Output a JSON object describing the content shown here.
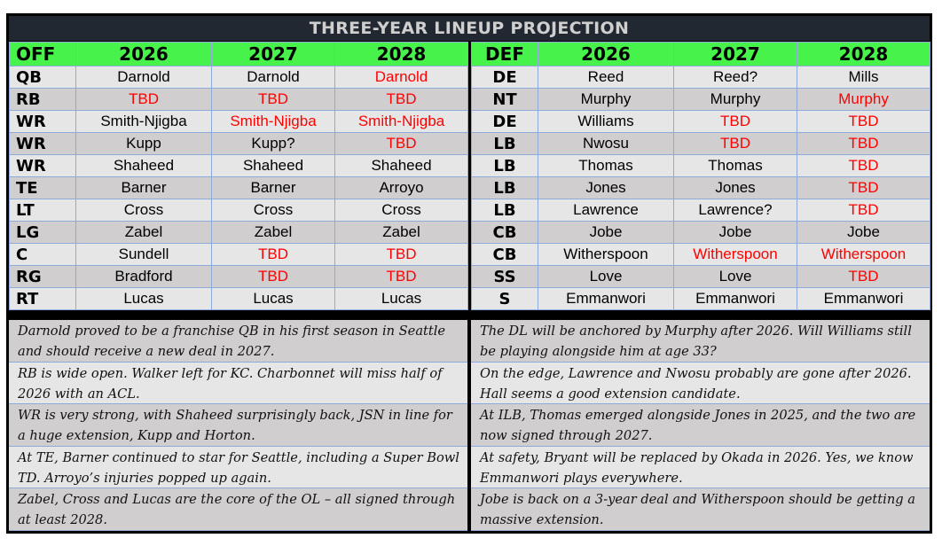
{
  "title": "THREE-YEAR LINEUP PROJECTION",
  "colors": {
    "header_green": "#47f34a",
    "title_bg": "#222831",
    "tbd_red": "#ff0000",
    "row_light": "#e6e6e6",
    "row_dark": "#d0cece"
  },
  "offense": {
    "headers": [
      "OFF",
      "2026",
      "2027",
      "2028"
    ],
    "rows": [
      {
        "pos": "QB",
        "cells": [
          {
            "v": "Darnold"
          },
          {
            "v": "Darnold"
          },
          {
            "v": "Darnold",
            "red": true
          }
        ]
      },
      {
        "pos": "RB",
        "cells": [
          {
            "v": "TBD",
            "red": true
          },
          {
            "v": "TBD",
            "red": true
          },
          {
            "v": "TBD",
            "red": true
          }
        ]
      },
      {
        "pos": "WR",
        "cells": [
          {
            "v": "Smith-Njigba"
          },
          {
            "v": "Smith-Njigba",
            "red": true
          },
          {
            "v": "Smith-Njigba",
            "red": true
          }
        ]
      },
      {
        "pos": "WR",
        "cells": [
          {
            "v": "Kupp"
          },
          {
            "v": "Kupp?"
          },
          {
            "v": "TBD",
            "red": true
          }
        ]
      },
      {
        "pos": "WR",
        "cells": [
          {
            "v": "Shaheed"
          },
          {
            "v": "Shaheed"
          },
          {
            "v": "Shaheed"
          }
        ]
      },
      {
        "pos": "TE",
        "cells": [
          {
            "v": "Barner"
          },
          {
            "v": "Barner"
          },
          {
            "v": "Arroyo"
          }
        ]
      },
      {
        "pos": "LT",
        "cells": [
          {
            "v": "Cross"
          },
          {
            "v": "Cross"
          },
          {
            "v": "Cross"
          }
        ]
      },
      {
        "pos": "LG",
        "cells": [
          {
            "v": "Zabel"
          },
          {
            "v": "Zabel"
          },
          {
            "v": "Zabel"
          }
        ]
      },
      {
        "pos": "C",
        "cells": [
          {
            "v": "Sundell"
          },
          {
            "v": "TBD",
            "red": true
          },
          {
            "v": "TBD",
            "red": true
          }
        ]
      },
      {
        "pos": "RG",
        "cells": [
          {
            "v": "Bradford"
          },
          {
            "v": "TBD",
            "red": true
          },
          {
            "v": "TBD",
            "red": true
          }
        ]
      },
      {
        "pos": "RT",
        "cells": [
          {
            "v": "Lucas"
          },
          {
            "v": "Lucas"
          },
          {
            "v": "Lucas"
          }
        ]
      }
    ],
    "notes": [
      "Darnold proved to be a franchise QB in his first season in Seattle and should receive a new deal in 2027.",
      "RB is wide open. Walker left for KC. Charbonnet will miss half of 2026 with an ACL.",
      "WR is very strong, with Shaheed surprisingly back, JSN in line for a huge extension, Kupp and Horton.",
      "At TE, Barner continued to star for Seattle, including a Super Bowl TD. Arroyo’s injuries popped up again.",
      "Zabel, Cross and Lucas are the core of the OL – all signed through at least 2028."
    ]
  },
  "defense": {
    "headers": [
      "DEF",
      "2026",
      "2027",
      "2028"
    ],
    "rows": [
      {
        "pos": "DE",
        "cells": [
          {
            "v": "Reed"
          },
          {
            "v": "Reed?"
          },
          {
            "v": "Mills"
          }
        ]
      },
      {
        "pos": "NT",
        "cells": [
          {
            "v": "Murphy"
          },
          {
            "v": "Murphy"
          },
          {
            "v": "Murphy",
            "red": true
          }
        ]
      },
      {
        "pos": "DE",
        "cells": [
          {
            "v": "Williams"
          },
          {
            "v": "TBD",
            "red": true
          },
          {
            "v": "TBD",
            "red": true
          }
        ]
      },
      {
        "pos": "LB",
        "cells": [
          {
            "v": "Nwosu"
          },
          {
            "v": "TBD",
            "red": true
          },
          {
            "v": "TBD",
            "red": true
          }
        ]
      },
      {
        "pos": "LB",
        "cells": [
          {
            "v": "Thomas"
          },
          {
            "v": "Thomas"
          },
          {
            "v": "TBD",
            "red": true
          }
        ]
      },
      {
        "pos": "LB",
        "cells": [
          {
            "v": "Jones"
          },
          {
            "v": "Jones"
          },
          {
            "v": "TBD",
            "red": true
          }
        ]
      },
      {
        "pos": "LB",
        "cells": [
          {
            "v": "Lawrence"
          },
          {
            "v": "Lawrence?"
          },
          {
            "v": "TBD",
            "red": true
          }
        ]
      },
      {
        "pos": "CB",
        "cells": [
          {
            "v": "Jobe"
          },
          {
            "v": "Jobe"
          },
          {
            "v": "Jobe"
          }
        ]
      },
      {
        "pos": "CB",
        "cells": [
          {
            "v": "Witherspoon"
          },
          {
            "v": "Witherspoon",
            "red": true
          },
          {
            "v": "Witherspoon",
            "red": true
          }
        ]
      },
      {
        "pos": "SS",
        "cells": [
          {
            "v": "Love"
          },
          {
            "v": "Love"
          },
          {
            "v": "TBD",
            "red": true
          }
        ]
      },
      {
        "pos": "S",
        "cells": [
          {
            "v": "Emmanwori"
          },
          {
            "v": "Emmanwori"
          },
          {
            "v": "Emmanwori"
          }
        ]
      }
    ],
    "notes": [
      "The DL will be anchored by Murphy after 2026. Will Williams still be playing alongside him at age 33?",
      "On the edge, Lawrence and Nwosu probably are gone after 2026. Hall seems a good extension candidate.",
      "At ILB, Thomas emerged alongside Jones in 2025, and the two are now signed through 2027.",
      "At safety, Bryant will be replaced by Okada in 2026. Yes, we know Emmanwori plays everywhere.",
      "Jobe is back on a 3-year deal and Witherspoon should be getting a massive extension."
    ]
  }
}
